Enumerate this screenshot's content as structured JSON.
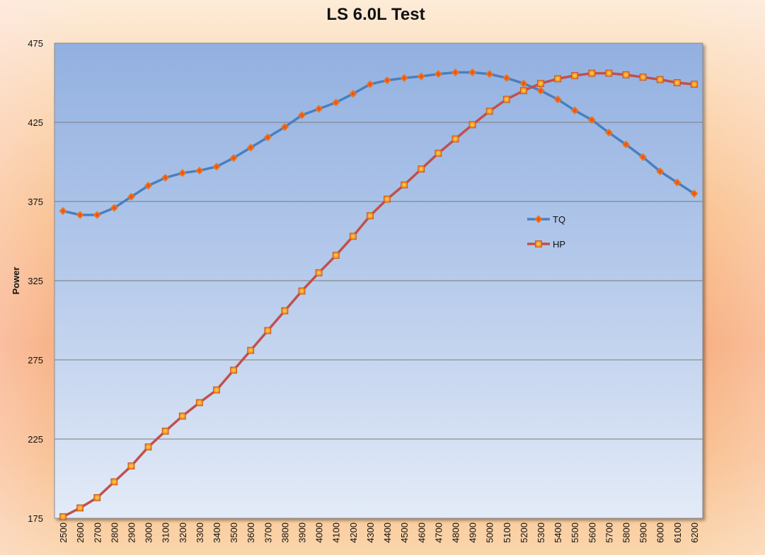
{
  "chart_data": {
    "type": "line",
    "title": "LS 6.0L Test",
    "xlabel": "",
    "ylabel": "Power",
    "ylim": [
      175,
      475
    ],
    "yticks": [
      175,
      225,
      275,
      325,
      375,
      425,
      475
    ],
    "grid": true,
    "legend_position": "right-middle",
    "categories": [
      "2500",
      "2600",
      "2700",
      "2800",
      "2900",
      "3000",
      "3100",
      "3200",
      "3300",
      "3400",
      "3500",
      "3600",
      "3700",
      "3800",
      "3900",
      "4000",
      "4100",
      "4200",
      "4300",
      "4400",
      "4500",
      "4600",
      "4700",
      "4800",
      "4900",
      "5000",
      "5100",
      "5200",
      "5300",
      "5400",
      "5500",
      "5600",
      "5700",
      "5800",
      "5900",
      "6000",
      "6100",
      "6200"
    ],
    "series": [
      {
        "name": "TQ",
        "color": "#4a7fbf",
        "marker": "diamond",
        "marker_color": "#f7a11a",
        "values": [
          369,
          366.5,
          366.5,
          371,
          378,
          385,
          390,
          393,
          394.5,
          397,
          402.5,
          409,
          415.5,
          422,
          429.5,
          433.5,
          437.5,
          443,
          449,
          451.5,
          453,
          454,
          455.5,
          456.5,
          456.5,
          455.5,
          453,
          449.5,
          445,
          439.5,
          432.5,
          426.5,
          418.5,
          411,
          403,
          394,
          387,
          380
        ]
      },
      {
        "name": "HP",
        "color": "#c0504d",
        "marker": "square",
        "marker_color": "#f9b531",
        "values": [
          176,
          181.5,
          188,
          198,
          208,
          220,
          230,
          239.5,
          248,
          256,
          268.5,
          281,
          293.5,
          306,
          318.5,
          330,
          341,
          353,
          366,
          376.5,
          385.5,
          395.5,
          405.5,
          414.5,
          423.5,
          432,
          439.5,
          445,
          449.5,
          452.5,
          454.5,
          456,
          456,
          455,
          453.5,
          452,
          450,
          449
        ]
      }
    ]
  }
}
